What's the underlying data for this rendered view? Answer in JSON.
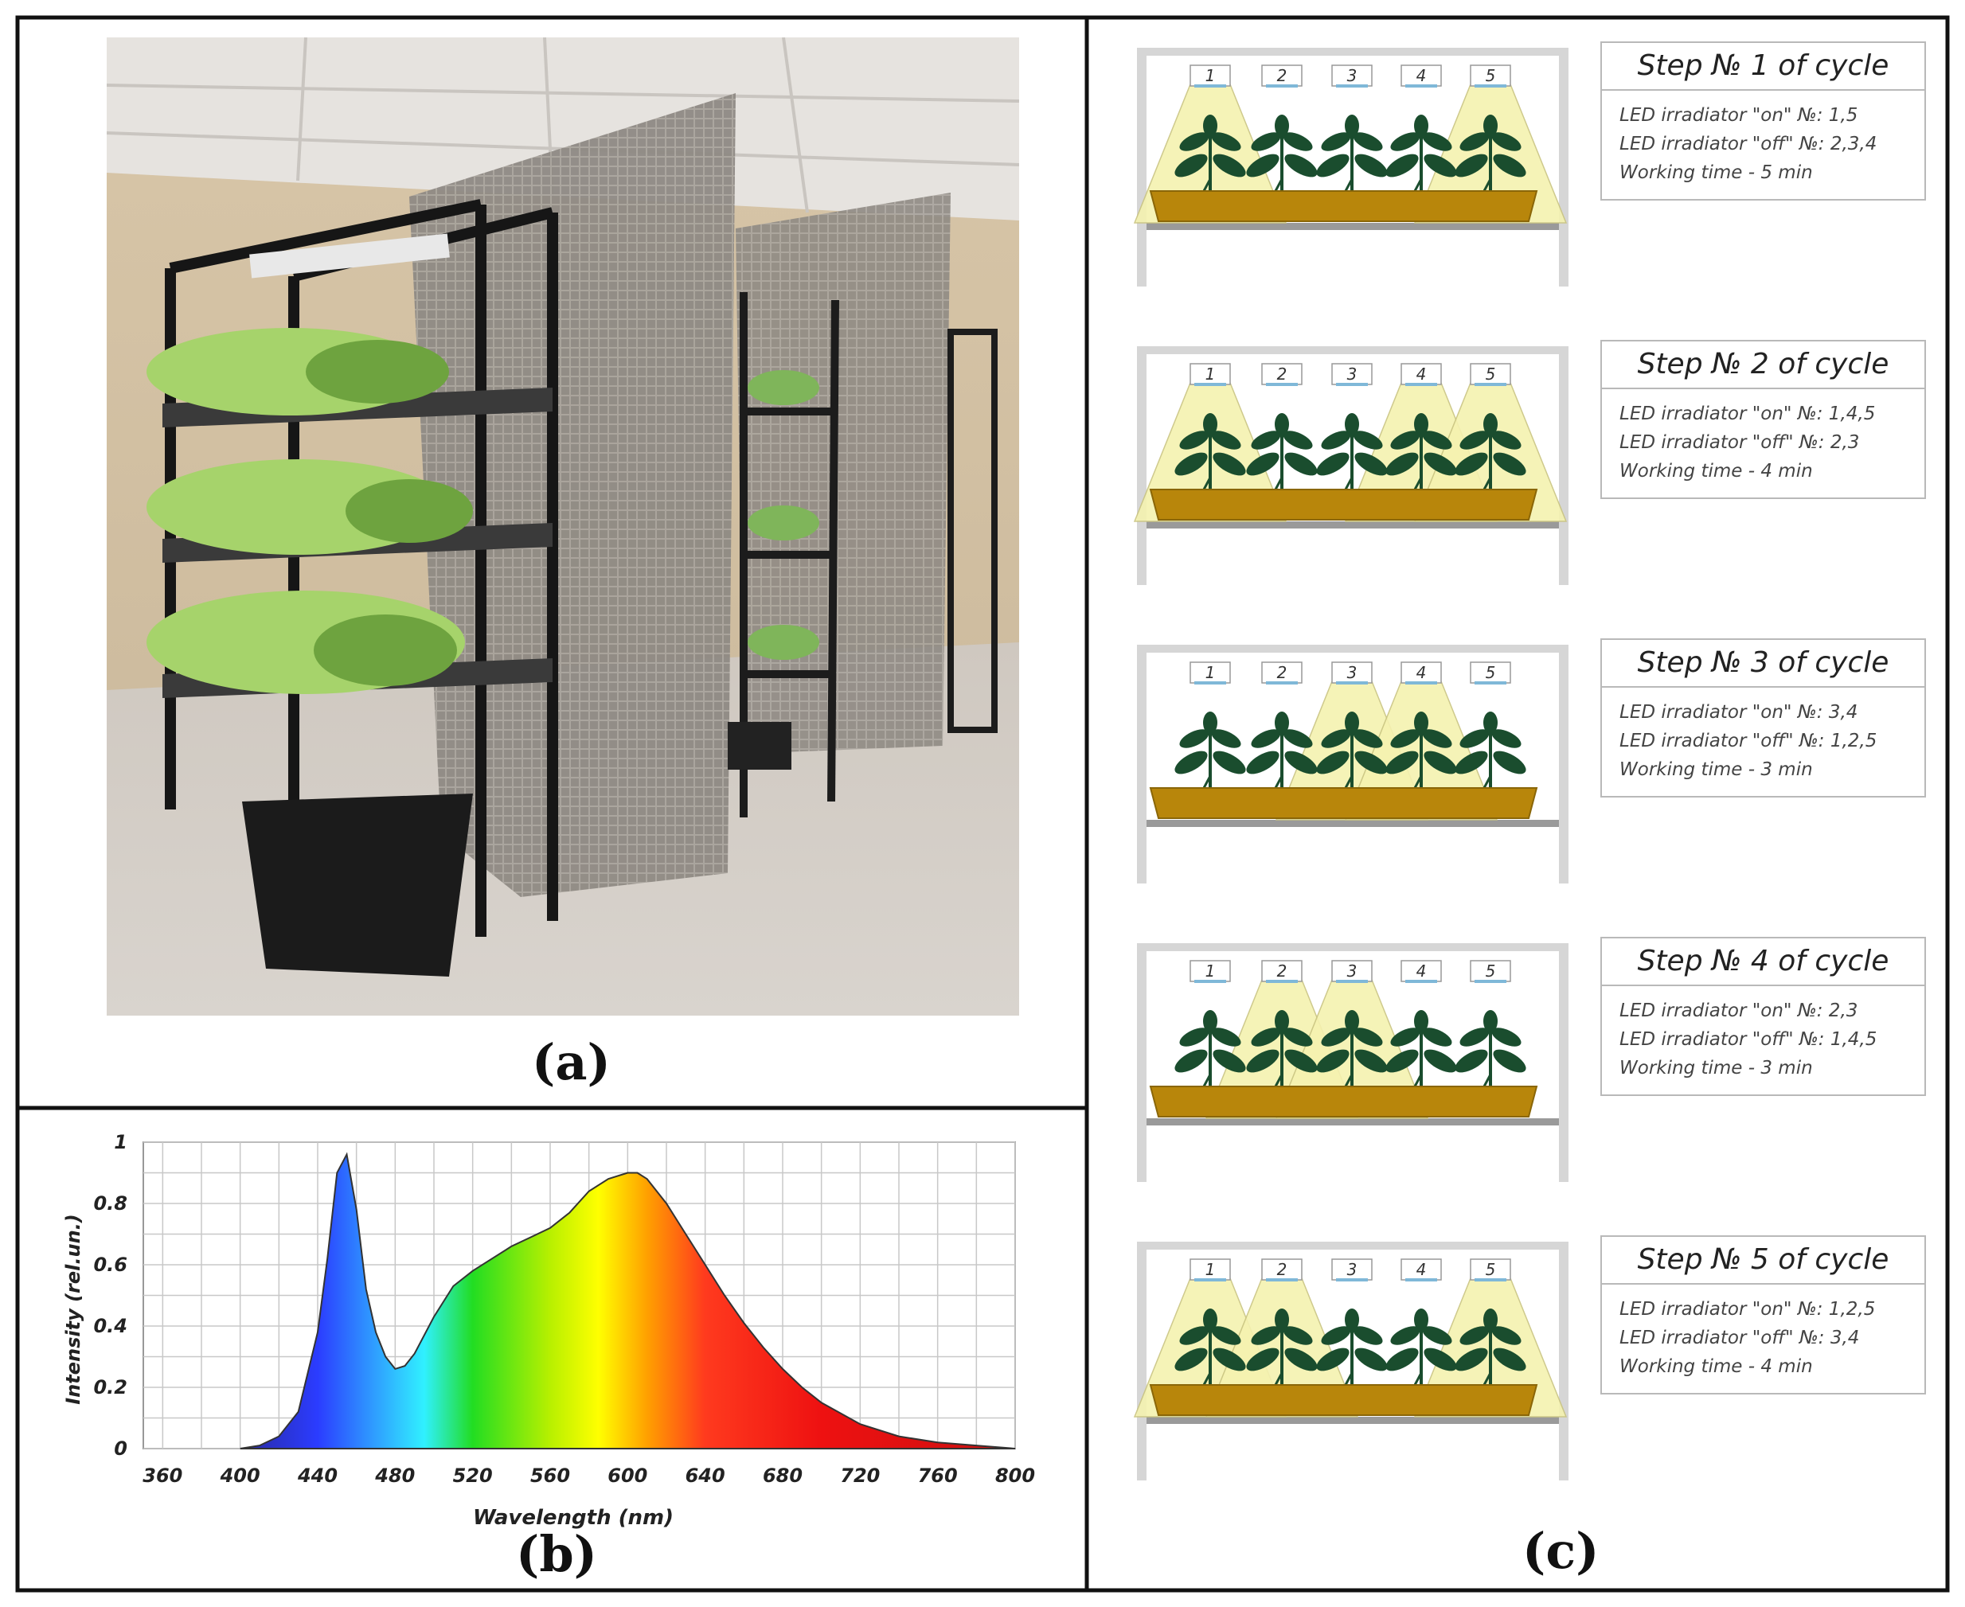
{
  "labels": {
    "a": "(a)",
    "b": "(b)",
    "c": "(c)"
  },
  "photo": {
    "description_icon": "greenhouse-racks-photo"
  },
  "chart_data": {
    "type": "area",
    "xlabel": "Wavelength (nm)",
    "ylabel": "Intensity (rel.un.)",
    "xlim": [
      350,
      800
    ],
    "ylim": [
      0,
      1
    ],
    "x_ticks": [
      "360",
      "400",
      "440",
      "480",
      "520",
      "560",
      "600",
      "640",
      "680",
      "720",
      "760",
      "800"
    ],
    "y_ticks": [
      "0",
      "0.2",
      "0.4",
      "0.6",
      "0.8",
      "1"
    ],
    "grid": true,
    "series": [
      {
        "x": [
          400,
          410,
          420,
          430,
          440,
          445,
          450,
          455,
          460,
          465,
          470,
          475,
          480,
          485,
          490,
          500,
          510,
          520,
          530,
          540,
          550,
          560,
          570,
          580,
          590,
          600,
          605,
          610,
          620,
          630,
          640,
          650,
          660,
          670,
          680,
          690,
          700,
          720,
          740,
          760,
          780,
          800
        ],
        "y": [
          0.0,
          0.01,
          0.04,
          0.12,
          0.38,
          0.62,
          0.9,
          0.96,
          0.78,
          0.52,
          0.38,
          0.3,
          0.26,
          0.27,
          0.31,
          0.43,
          0.53,
          0.58,
          0.62,
          0.66,
          0.69,
          0.72,
          0.77,
          0.84,
          0.88,
          0.9,
          0.9,
          0.88,
          0.8,
          0.7,
          0.6,
          0.5,
          0.41,
          0.33,
          0.26,
          0.2,
          0.15,
          0.08,
          0.04,
          0.02,
          0.01,
          0.0
        ]
      }
    ]
  },
  "steps": [
    {
      "title": "Step № 1 of cycle",
      "on": "LED irradiator \"on\" №: 1,5",
      "off": "LED irradiator \"off\" №: 2,3,4",
      "time": "Working time - 5 min",
      "lamps_on": [
        1,
        5
      ]
    },
    {
      "title": "Step № 2 of cycle",
      "on": "LED irradiator \"on\" №: 1,4,5",
      "off": "LED irradiator \"off\" №: 2,3",
      "time": "Working time - 4 min",
      "lamps_on": [
        1,
        4,
        5
      ]
    },
    {
      "title": "Step № 3 of cycle",
      "on": "LED irradiator \"on\" №: 3,4",
      "off": "LED irradiator \"off\" №: 1,2,5",
      "time": "Working time - 3 min",
      "lamps_on": [
        3,
        4
      ]
    },
    {
      "title": "Step № 4 of cycle",
      "on": "LED irradiator \"on\" №: 2,3",
      "off": "LED irradiator \"off\" №: 1,4,5",
      "time": "Working time - 3 min",
      "lamps_on": [
        2,
        3
      ]
    },
    {
      "title": "Step № 5 of cycle",
      "on": "LED irradiator \"on\" №: 1,2,5",
      "off": "LED irradiator \"off\" №: 3,4",
      "time": "Working time - 4 min",
      "lamps_on": [
        1,
        2,
        5
      ]
    }
  ],
  "lamp_numbers": [
    "1",
    "2",
    "3",
    "4",
    "5"
  ],
  "colors": {
    "light_cone": "#f5f2b0",
    "tray": "#b8860b",
    "frame": "#d6d6d6",
    "leaf": "#1a4d2e"
  }
}
